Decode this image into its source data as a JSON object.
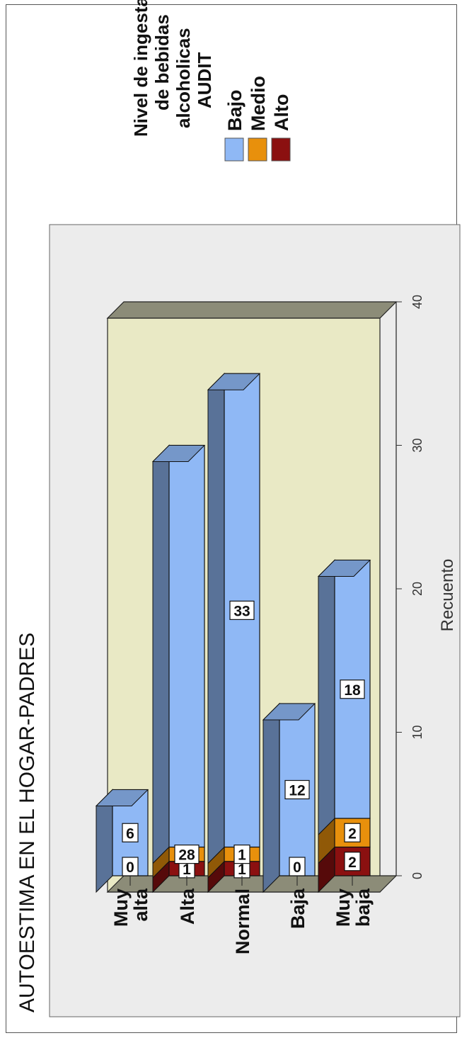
{
  "chart_data": {
    "type": "bar",
    "stacked": true,
    "orientation": "horizontal",
    "three_d": true,
    "title": "AUTOESTIMA EN EL HOGAR-PADRES",
    "xlabel": "Recuento",
    "ylabel": "",
    "categories": [
      "Muy alta",
      "Alta",
      "Normal",
      "Baja",
      "Muy baja"
    ],
    "category_lines": [
      [
        "Muy",
        "alta"
      ],
      [
        "Alta"
      ],
      [
        "Normal"
      ],
      [
        "Baja"
      ],
      [
        "Muy",
        "baja"
      ]
    ],
    "series": [
      {
        "name": "Alto",
        "color": "#8b1010",
        "values": [
          0,
          1,
          1,
          0,
          2
        ]
      },
      {
        "name": "Medio",
        "color": "#e8900c",
        "values": [
          0,
          1,
          1,
          0,
          2
        ]
      },
      {
        "name": "Bajo",
        "color": "#8fb8f5",
        "values": [
          6,
          28,
          33,
          12,
          18
        ]
      }
    ],
    "data_labels": [
      [
        "0",
        "6"
      ],
      [
        "1",
        "28"
      ],
      [
        "1",
        "1",
        "33"
      ],
      [
        "0",
        "12"
      ],
      [
        "2",
        "2",
        "18"
      ]
    ],
    "xlim": [
      0,
      40
    ],
    "xticks": [
      "0",
      "10",
      "20",
      "30",
      "40"
    ],
    "legend": {
      "title_lines": [
        "Nivel de ingesta",
        "de bebidas",
        "alcoholicas",
        "AUDIT"
      ],
      "items": [
        {
          "label": "Bajo",
          "color": "#8fb8f5"
        },
        {
          "label": "Medio",
          "color": "#e8900c"
        },
        {
          "label": "Alto",
          "color": "#8b1010"
        }
      ],
      "position": "top-right"
    },
    "colors": {
      "plot_background": "#e9e9c5",
      "outer_background": "#ececec",
      "wall_side": "#8c8c78"
    }
  }
}
